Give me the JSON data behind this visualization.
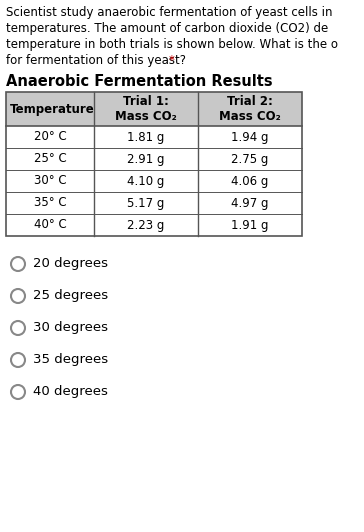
{
  "header_text": "Anaerobic Fermentation Results",
  "intro_lines": [
    "Scientist study anaerobic fermentation of yeast cells in",
    "temperatures. The amount of carbon dioxide (CO2) de",
    "temperature in both trials is shown below. What is the o",
    "for fermentation of this yeast? *"
  ],
  "col_headers": [
    "Temperature",
    "Trial 1:\nMass CO₂",
    "Trial 2:\nMass CO₂"
  ],
  "rows": [
    [
      "20° C",
      "1.81 g",
      "1.94 g"
    ],
    [
      "25° C",
      "2.91 g",
      "2.75 g"
    ],
    [
      "30° C",
      "4.10 g",
      "4.06 g"
    ],
    [
      "35° C",
      "5.17 g",
      "4.97 g"
    ],
    [
      "40° C",
      "2.23 g",
      "1.91 g"
    ]
  ],
  "options": [
    "20 degrees",
    "25 degrees",
    "30 degrees",
    "35 degrees",
    "40 degrees"
  ],
  "bg_color": "#ffffff",
  "table_header_bg": "#c8c8c8",
  "table_border_color": "#555555",
  "text_color": "#000000",
  "red_star_color": "#cc0000",
  "intro_fontsize": 8.5,
  "title_fontsize": 10.5,
  "table_fontsize": 8.5,
  "option_fontsize": 9.5
}
